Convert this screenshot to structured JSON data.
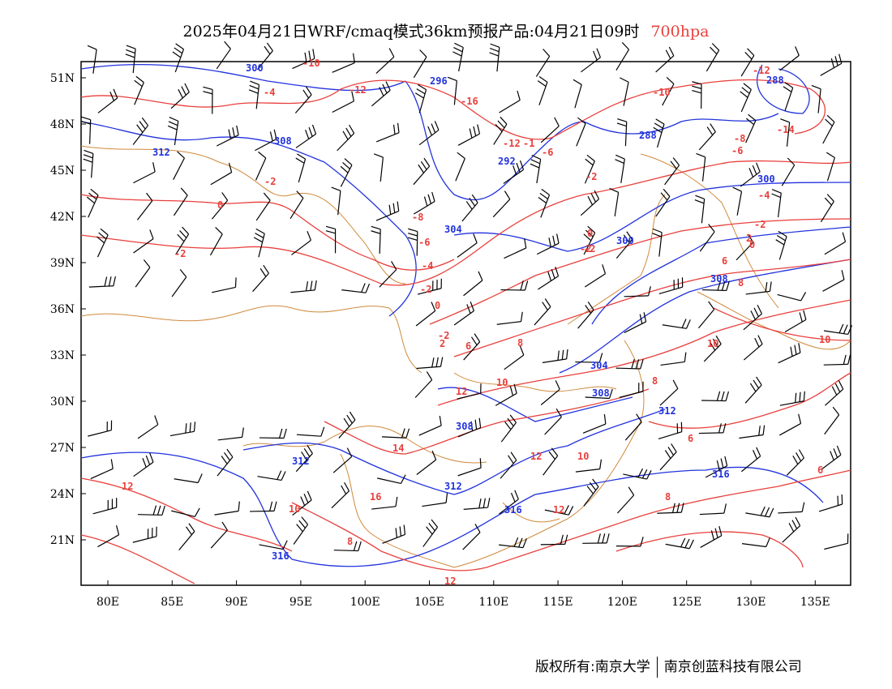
{
  "title": {
    "main": "2025年04月21日WRF/cmaq模式36km预报产品:04月21日09时",
    "level": "700hpa"
  },
  "axes": {
    "lat_labels": [
      "51N",
      "48N",
      "45N",
      "42N",
      "39N",
      "36N",
      "33N",
      "30N",
      "27N",
      "24N",
      "21N"
    ],
    "lon_labels": [
      "80E",
      "85E",
      "90E",
      "95E",
      "100E",
      "105E",
      "110E",
      "115E",
      "120E",
      "125E",
      "130E",
      "135E"
    ]
  },
  "colors": {
    "height_contour": "#2233dd",
    "temperature_contour": "#e8403c",
    "border": "#d08a3c",
    "wind_barb": "#000000"
  },
  "height_labels": [
    "300",
    "308",
    "312",
    "296",
    "292",
    "288",
    "288",
    "304",
    "300",
    "300",
    "308",
    "304",
    "308",
    "312",
    "316",
    "316",
    "312",
    "312",
    "316",
    "308"
  ],
  "temperature_labels": [
    "-4",
    "-10",
    "-12",
    "-16",
    "-10",
    "-12",
    "-12",
    "-1",
    "-6",
    "-14",
    "-8",
    "-6",
    "-2",
    "-4",
    "0",
    "-2",
    "-8",
    "-6",
    "-4",
    "-2",
    "0",
    "-2",
    "-2",
    "0",
    "2",
    "-2",
    "0",
    "2",
    "6",
    "8",
    "6",
    "8",
    "10",
    "10",
    "12",
    "14",
    "12",
    "10",
    "12",
    "8",
    "10",
    "10",
    "12",
    "16",
    "12",
    "8",
    "6",
    "6",
    "-2",
    "-2",
    "8"
  ],
  "footer": {
    "left": "版权所有:南京大学",
    "right": "南京创蓝科技有限公司"
  }
}
